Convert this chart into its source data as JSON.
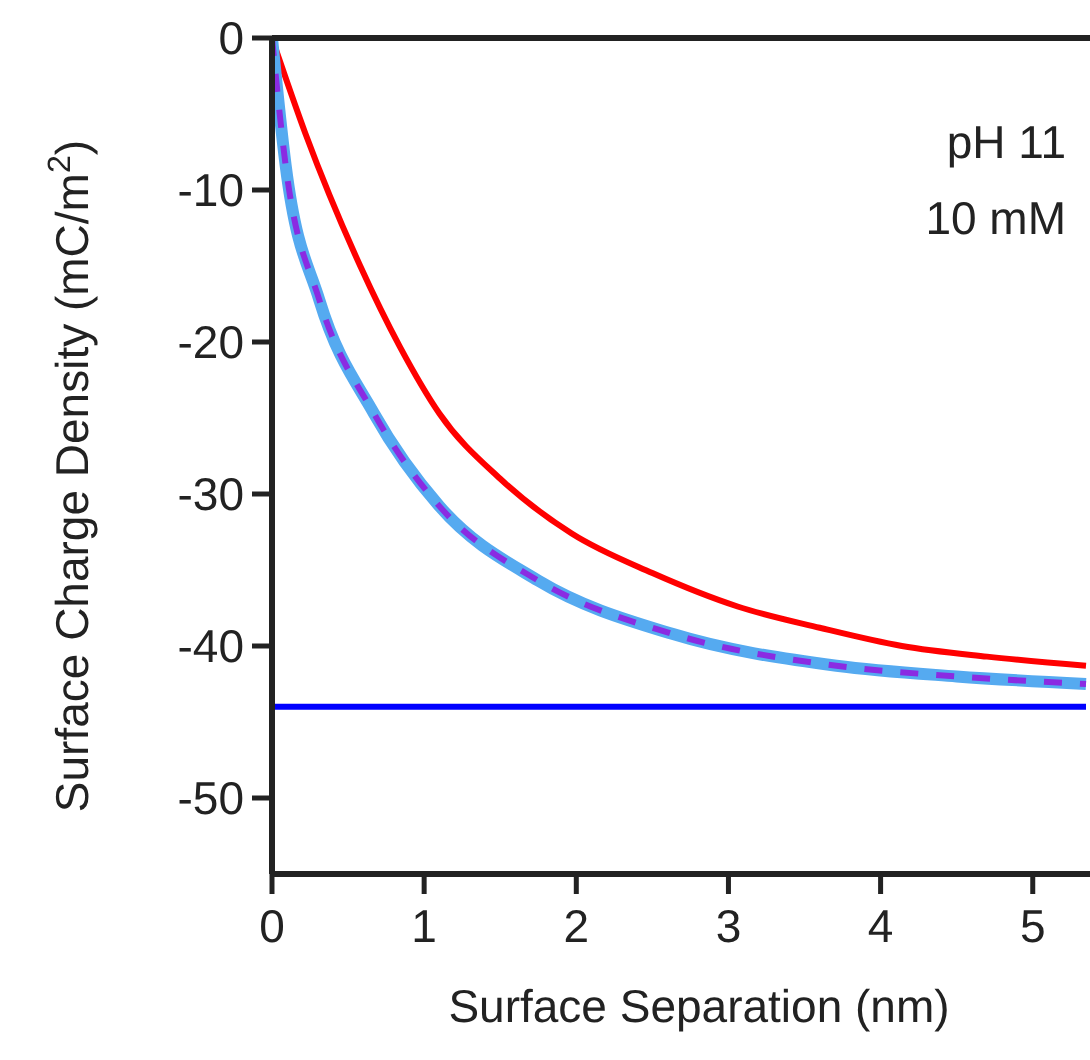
{
  "chart_data": {
    "type": "line",
    "xlabel": "Surface Separation (nm)",
    "ylabel": "Surface Charge Density (mC/m$^{2}$)",
    "xlim": [
      0,
      5.35
    ],
    "ylim": [
      -55,
      0
    ],
    "xticks": [
      0,
      1,
      2,
      3,
      4,
      5
    ],
    "yticks": [
      0,
      -10,
      -20,
      -30,
      -40,
      -50
    ],
    "grid": false,
    "marker": "none",
    "annotations": [
      "pH 11",
      "10 mM"
    ],
    "series": [
      {
        "color": "#0000ff",
        "x": [
          0,
          5.35
        ],
        "values": [
          -44,
          -44
        ]
      },
      {
        "color": "#ff0000",
        "x": [
          0,
          0.22,
          0.58,
          0.84,
          1.1,
          1.5,
          1.97,
          2.5,
          3.06,
          3.6,
          4.14,
          4.7,
          5.35
        ],
        "values": [
          0,
          -6.3,
          -15,
          -20.3,
          -24.7,
          -29,
          -32.6,
          -35.2,
          -37.4,
          -38.8,
          -40,
          -40.7,
          -41.3
        ]
      },
      {
        "color": "#55aaf0",
        "x": [
          0,
          0.09,
          0.31,
          0.67,
          1.1,
          1.75,
          2.63,
          3.71,
          4.5,
          5.35
        ],
        "values": [
          0,
          -8.4,
          -17.2,
          -24.7,
          -30.8,
          -35.7,
          -39.2,
          -41.3,
          -42,
          -42.5
        ]
      },
      {
        "color": "#8a2be2",
        "line_style": "dashed",
        "x": [
          0,
          0.09,
          0.31,
          0.67,
          1.1,
          1.75,
          2.63,
          3.71,
          4.5,
          5.35
        ],
        "values": [
          0,
          -8.4,
          -17.2,
          -24.7,
          -30.8,
          -35.7,
          -39.2,
          -41.3,
          -42,
          -42.5
        ]
      }
    ]
  }
}
